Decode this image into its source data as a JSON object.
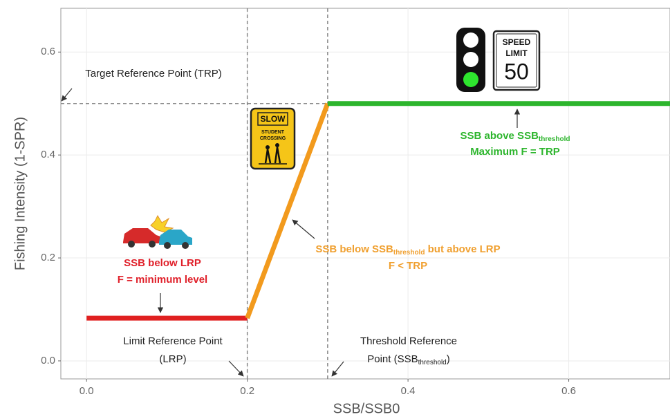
{
  "chart_data": {
    "type": "line",
    "x_label": "SSB/SSB0",
    "y_label": "Fishing Intensity (1-SPR)",
    "xlim": [
      -0.032,
      0.726
    ],
    "ylim": [
      -0.035,
      0.685
    ],
    "xticks": [
      {
        "value": 0,
        "label": "0.0"
      },
      0.2,
      0.4,
      0.6
    ],
    "yticks": [
      {
        "value": 0,
        "label": "0.0"
      },
      0.2,
      0.4,
      0.6
    ],
    "grid": true,
    "series": [
      {
        "color": "#e02020",
        "x": [
          0,
          0.2
        ],
        "values": [
          0.083,
          0.083
        ]
      },
      {
        "color": "#f29a1d",
        "x": [
          0.2,
          0.3
        ],
        "values": [
          0.083,
          0.5
        ]
      },
      {
        "color": "#2db52d",
        "x": [
          0.3,
          0.726
        ],
        "values": [
          0.5,
          0.5
        ]
      }
    ],
    "reference_lines": [
      {
        "x": 0.2
      },
      {
        "x": 0.3
      },
      {
        "y": 0.5,
        "xmax": 0.3
      }
    ],
    "annotations": [
      {
        "color": "#222222",
        "bold": false,
        "lines": [
          [
            "Target Reference Point (TRP)"
          ]
        ]
      },
      {
        "color": "#222222",
        "bold": false,
        "lines": [
          [
            "Limit Reference Point"
          ],
          [
            "(LRP)"
          ]
        ]
      },
      {
        "color": "#222222",
        "bold": false,
        "lines": [
          [
            "Threshold Reference"
          ],
          [
            "Point (SSB",
            {
              "sub": "threshold"
            },
            ")"
          ]
        ]
      },
      {
        "color": "#e0202a",
        "bold": true,
        "lines": [
          [
            "SSB below LRP"
          ],
          [
            "F = minimum level"
          ]
        ]
      },
      {
        "color": "#f0a030",
        "bold": true,
        "lines": [
          [
            "SSB below SSB",
            {
              "sub": "threshold"
            },
            " but above LRP"
          ],
          [
            "F < TRP"
          ]
        ]
      },
      {
        "color": "#2db52d",
        "bold": true,
        "lines": [
          [
            "SSB above SSB",
            {
              "sub": "threshold"
            }
          ],
          [
            "Maximum F = TRP"
          ]
        ]
      }
    ],
    "signs": {
      "slow": [
        "SLOW",
        "STUDENT",
        "CROSSING"
      ],
      "speed": [
        "SPEED",
        "LIMIT",
        "50"
      ]
    }
  }
}
